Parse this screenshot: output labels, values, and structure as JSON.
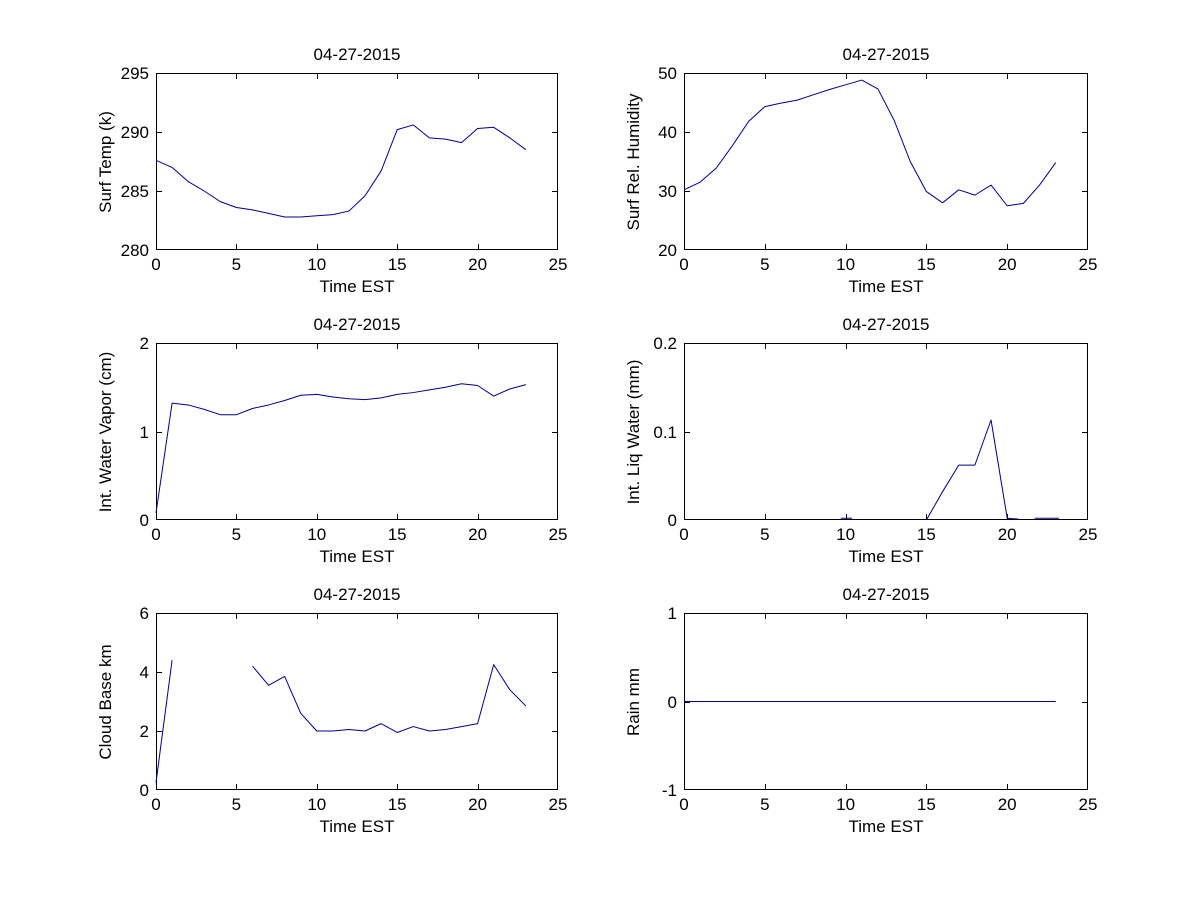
{
  "figure": {
    "date": "04-27-2015",
    "colors": {
      "line": "#00008B",
      "axis": "#000000",
      "background": "#FFFFFF",
      "text": "#000000"
    }
  },
  "chart_data": [
    {
      "type": "line",
      "title": "04-27-2015",
      "xlabel": "Time EST",
      "ylabel": "Surf Temp (k)",
      "xlim": [
        0,
        25
      ],
      "ylim": [
        280,
        295
      ],
      "xticks": [
        0,
        5,
        10,
        15,
        20,
        25
      ],
      "yticks": [
        280,
        285,
        290,
        295
      ],
      "grid": false,
      "legend": null,
      "x": [
        0,
        1,
        2,
        3,
        4,
        5,
        6,
        7,
        8,
        9,
        10,
        11,
        12,
        13,
        14,
        15,
        16,
        17,
        18,
        19,
        20,
        21,
        22,
        23
      ],
      "y": [
        287.6,
        287.0,
        285.8,
        285.0,
        284.1,
        283.6,
        283.4,
        283.1,
        282.8,
        282.8,
        282.9,
        283.0,
        283.3,
        284.6,
        286.7,
        290.2,
        290.6,
        289.5,
        289.4,
        289.1,
        290.3,
        290.4,
        289.5,
        288.5
      ]
    },
    {
      "type": "line",
      "title": "04-27-2015",
      "xlabel": "Time EST",
      "ylabel": "Surf Rel. Humidity",
      "xlim": [
        0,
        25
      ],
      "ylim": [
        20,
        50
      ],
      "xticks": [
        0,
        5,
        10,
        15,
        20,
        25
      ],
      "yticks": [
        20,
        30,
        40,
        50
      ],
      "grid": false,
      "legend": null,
      "x": [
        0,
        1,
        2,
        3,
        4,
        5,
        6,
        7,
        8,
        9,
        10,
        11,
        12,
        13,
        14,
        15,
        16,
        17,
        18,
        19,
        20,
        21,
        22,
        23
      ],
      "y": [
        30.2,
        31.5,
        33.9,
        37.7,
        41.8,
        44.3,
        44.9,
        45.4,
        46.3,
        47.2,
        48.0,
        48.8,
        47.3,
        42.0,
        35.0,
        29.9,
        28.0,
        30.2,
        29.3,
        31.0,
        27.5,
        27.9,
        31.0,
        34.8
      ]
    },
    {
      "type": "line",
      "title": "04-27-2015",
      "xlabel": "Time EST",
      "ylabel": "Int. Water Vapor (cm)",
      "xlim": [
        0,
        25
      ],
      "ylim": [
        0,
        2
      ],
      "xticks": [
        0,
        5,
        10,
        15,
        20,
        25
      ],
      "yticks": [
        0,
        1,
        2
      ],
      "grid": false,
      "legend": null,
      "x": [
        0,
        1,
        2,
        3,
        4,
        5,
        6,
        7,
        8,
        9,
        10,
        11,
        12,
        13,
        14,
        15,
        16,
        17,
        18,
        19,
        20,
        21,
        22,
        23
      ],
      "y": [
        0.08,
        1.32,
        1.3,
        1.25,
        1.19,
        1.19,
        1.26,
        1.3,
        1.35,
        1.41,
        1.42,
        1.39,
        1.37,
        1.36,
        1.38,
        1.42,
        1.44,
        1.47,
        1.5,
        1.54,
        1.52,
        1.4,
        1.48,
        1.53
      ]
    },
    {
      "type": "line",
      "title": "04-27-2015",
      "xlabel": "Time EST",
      "ylabel": "Int. Liq Water (mm)",
      "xlim": [
        0,
        25
      ],
      "ylim": [
        0,
        0.2
      ],
      "xticks": [
        0,
        5,
        10,
        15,
        20,
        25
      ],
      "yticks": [
        0,
        0.1,
        0.2
      ],
      "grid": false,
      "legend": null,
      "x": [
        9.7,
        10.4,
        null,
        15,
        16,
        17,
        18,
        19,
        20,
        20.7,
        null,
        21.7,
        23.2
      ],
      "y": [
        0.002,
        0.002,
        null,
        0,
        0.032,
        0.062,
        0.062,
        0.113,
        0.002,
        0.001,
        null,
        0.002,
        0.002
      ]
    },
    {
      "type": "line",
      "title": "04-27-2015",
      "xlabel": "Time EST",
      "ylabel": "Cloud Base km",
      "xlim": [
        0,
        25
      ],
      "ylim": [
        0,
        6
      ],
      "xticks": [
        0,
        5,
        10,
        15,
        20,
        25
      ],
      "yticks": [
        0,
        2,
        4,
        6
      ],
      "grid": false,
      "legend": null,
      "x": [
        0,
        1,
        null,
        6,
        7,
        8,
        9,
        10,
        11,
        12,
        13,
        14,
        15,
        16,
        17,
        18,
        19,
        20,
        21,
        22,
        23
      ],
      "y": [
        0.25,
        4.4,
        null,
        4.2,
        3.55,
        3.85,
        2.6,
        2.0,
        2.0,
        2.05,
        2.0,
        2.25,
        1.95,
        2.15,
        2.0,
        2.05,
        2.15,
        2.25,
        4.25,
        3.4,
        2.85
      ]
    },
    {
      "type": "line",
      "title": "04-27-2015",
      "xlabel": "Time EST",
      "ylabel": "Rain mm",
      "xlim": [
        0,
        25
      ],
      "ylim": [
        -1,
        1
      ],
      "xticks": [
        0,
        5,
        10,
        15,
        20,
        25
      ],
      "yticks": [
        -1,
        0,
        1
      ],
      "grid": false,
      "legend": null,
      "x": [
        0,
        1,
        2,
        3,
        4,
        5,
        6,
        7,
        8,
        9,
        10,
        11,
        12,
        13,
        14,
        15,
        16,
        17,
        18,
        19,
        20,
        21,
        22,
        23
      ],
      "y": [
        0,
        0,
        0,
        0,
        0,
        0,
        0,
        0,
        0,
        0,
        0,
        0,
        0,
        0,
        0,
        0,
        0,
        0,
        0,
        0,
        0,
        0,
        0,
        0
      ]
    }
  ]
}
